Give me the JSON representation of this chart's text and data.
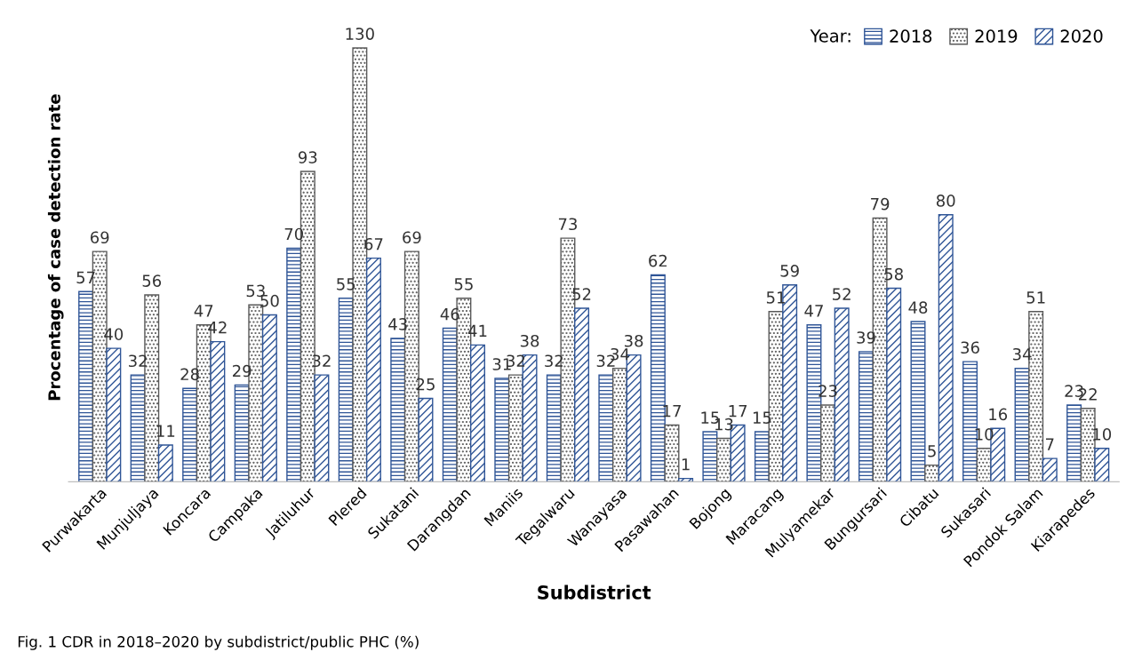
{
  "chart_data": {
    "type": "bar",
    "xlabel": "Subdistrict",
    "ylabel": "Procentage of case detection rate",
    "legend_title": "Year:",
    "categories": [
      "Purwakarta",
      "Munjuljaya",
      "Koncara",
      "Campaka",
      "Jatiluhur",
      "Plered",
      "Sukatani",
      "Darangdan",
      "Maniis",
      "Tegalwaru",
      "Wanayasa",
      "Pasawahan",
      "Bojong",
      "Maracang",
      "Mulyamekar",
      "Bungursari",
      "Cibatu",
      "Sukasari",
      "Pondok Salam",
      "Kiarapedes"
    ],
    "series": [
      {
        "name": "2018",
        "color": "#2f5597",
        "values": [
          57,
          32,
          28,
          29,
          70,
          55,
          43,
          46,
          31,
          32,
          32,
          62,
          15,
          15,
          47,
          39,
          48,
          36,
          34,
          23
        ]
      },
      {
        "name": "2019",
        "color": "#595959",
        "values": [
          69,
          56,
          47,
          53,
          93,
          130,
          69,
          55,
          32,
          73,
          34,
          17,
          13,
          51,
          23,
          79,
          5,
          10,
          51,
          22
        ]
      },
      {
        "name": "2020",
        "color": "#2f5597",
        "values": [
          40,
          11,
          42,
          50,
          32,
          67,
          25,
          41,
          38,
          52,
          38,
          1,
          17,
          59,
          52,
          58,
          80,
          16,
          7,
          10
        ]
      }
    ],
    "data_labels": true,
    "legend": "top right",
    "grid": false,
    "annotations": [
      "Fig. 1 CDR in 2018–2020 by subdistrict/public PHC (%)"
    ]
  }
}
